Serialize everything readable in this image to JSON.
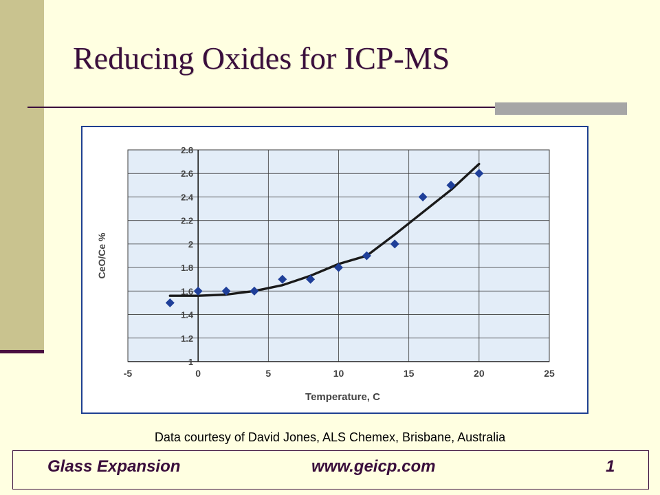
{
  "slide": {
    "title": "Reducing Oxides for ICP-MS",
    "caption": "Data courtesy of David Jones, ALS Chemex, Brisbane, Australia"
  },
  "footer": {
    "company": "Glass Expansion",
    "website": "www.geicp.com",
    "page_number": "1"
  },
  "colors": {
    "plot_background": "#E3EDF8",
    "marker": "#1F3F99",
    "fit_line": "#1A1A1A",
    "accent": "#3A0E3C"
  },
  "chart_data": {
    "type": "scatter",
    "xlabel": "Temperature, C",
    "ylabel": "CeO/Ce %",
    "xlim": [
      -5,
      25
    ],
    "ylim": [
      1,
      2.8
    ],
    "x_ticks": [
      "-5",
      "0",
      "5",
      "10",
      "15",
      "20",
      "25"
    ],
    "y_ticks": [
      "1",
      "1.2",
      "1.4",
      "1.6",
      "1.8",
      "2",
      "2.2",
      "2.4",
      "2.6",
      "2.8"
    ],
    "grid": true,
    "series": [
      {
        "kind": "markers",
        "marker": "diamond",
        "points": [
          {
            "x": -2,
            "y": 1.5
          },
          {
            "x": 0,
            "y": 1.6
          },
          {
            "x": 2,
            "y": 1.6
          },
          {
            "x": 4,
            "y": 1.6
          },
          {
            "x": 6,
            "y": 1.7
          },
          {
            "x": 8,
            "y": 1.7
          },
          {
            "x": 10,
            "y": 1.8
          },
          {
            "x": 12,
            "y": 1.9
          },
          {
            "x": 14,
            "y": 2.0
          },
          {
            "x": 16,
            "y": 2.4
          },
          {
            "x": 18,
            "y": 2.5
          },
          {
            "x": 20,
            "y": 2.6
          }
        ]
      },
      {
        "kind": "fit-line",
        "points": [
          {
            "x": -2,
            "y": 1.56
          },
          {
            "x": 0,
            "y": 1.56
          },
          {
            "x": 2,
            "y": 1.57
          },
          {
            "x": 4,
            "y": 1.6
          },
          {
            "x": 6,
            "y": 1.65
          },
          {
            "x": 8,
            "y": 1.73
          },
          {
            "x": 10,
            "y": 1.83
          },
          {
            "x": 12,
            "y": 1.9
          },
          {
            "x": 14,
            "y": 2.08
          },
          {
            "x": 16,
            "y": 2.27
          },
          {
            "x": 18,
            "y": 2.46
          },
          {
            "x": 20,
            "y": 2.68
          }
        ]
      }
    ]
  }
}
